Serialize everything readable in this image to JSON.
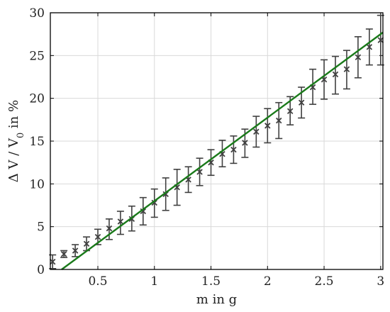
{
  "chart_data": {
    "type": "scatter",
    "title": "",
    "xlabel": "m in g",
    "ylabel": "Δ V / V",
    "ylabel_subscript": "0",
    "ylabel_suffix": " in %",
    "xlim": [
      0.08,
      3.02
    ],
    "ylim": [
      0,
      30
    ],
    "xticks": [
      0.5,
      1,
      1.5,
      2,
      2.5,
      3
    ],
    "xtick_labels": [
      "0.5",
      "1",
      "1.5",
      "2",
      "2.5",
      "3"
    ],
    "yticks": [
      0,
      5,
      10,
      15,
      20,
      25,
      30
    ],
    "ytick_labels": [
      "0",
      "5",
      "10",
      "15",
      "20",
      "25",
      "30"
    ],
    "grid": true,
    "colors": {
      "markers": "#404040",
      "fit": "#1a7a1a",
      "grid": "#d9d9d9"
    },
    "series": [
      {
        "marker": "x",
        "x": [
          0.1,
          0.2,
          0.3,
          0.4,
          0.5,
          0.6,
          0.7,
          0.8,
          0.9,
          1.0,
          1.1,
          1.2,
          1.3,
          1.4,
          1.5,
          1.6,
          1.7,
          1.8,
          1.9,
          2.0,
          2.1,
          2.2,
          2.3,
          2.4,
          2.5,
          2.6,
          2.7,
          2.8,
          2.9,
          3.0
        ],
        "y": [
          0.9,
          1.8,
          2.2,
          3.0,
          3.8,
          4.8,
          5.6,
          5.9,
          6.8,
          7.8,
          8.8,
          9.6,
          10.5,
          11.4,
          12.5,
          13.5,
          14.0,
          14.8,
          16.1,
          16.8,
          17.4,
          18.5,
          19.5,
          21.3,
          22.2,
          22.8,
          23.4,
          24.8,
          26.0,
          26.8
        ],
        "err_low": [
          0.8,
          0.4,
          0.7,
          0.8,
          0.9,
          1.3,
          1.5,
          1.4,
          1.6,
          1.7,
          1.9,
          2.1,
          1.5,
          1.6,
          1.5,
          1.5,
          1.6,
          1.7,
          1.8,
          2.0,
          2.1,
          1.6,
          1.8,
          2.0,
          2.3,
          2.3,
          2.3,
          2.4,
          2.1,
          2.9
        ],
        "err_high": [
          0.8,
          0.4,
          0.7,
          0.8,
          0.9,
          1.1,
          1.2,
          1.5,
          1.6,
          1.6,
          1.9,
          2.1,
          1.5,
          1.6,
          1.5,
          1.6,
          1.6,
          1.6,
          1.8,
          2.0,
          2.1,
          1.7,
          1.8,
          2.1,
          2.3,
          2.1,
          2.2,
          2.4,
          2.1,
          2.9
        ]
      },
      {
        "marker": "line",
        "x": [
          0.18,
          3.02
        ],
        "y": [
          0.0,
          27.7
        ]
      }
    ]
  }
}
